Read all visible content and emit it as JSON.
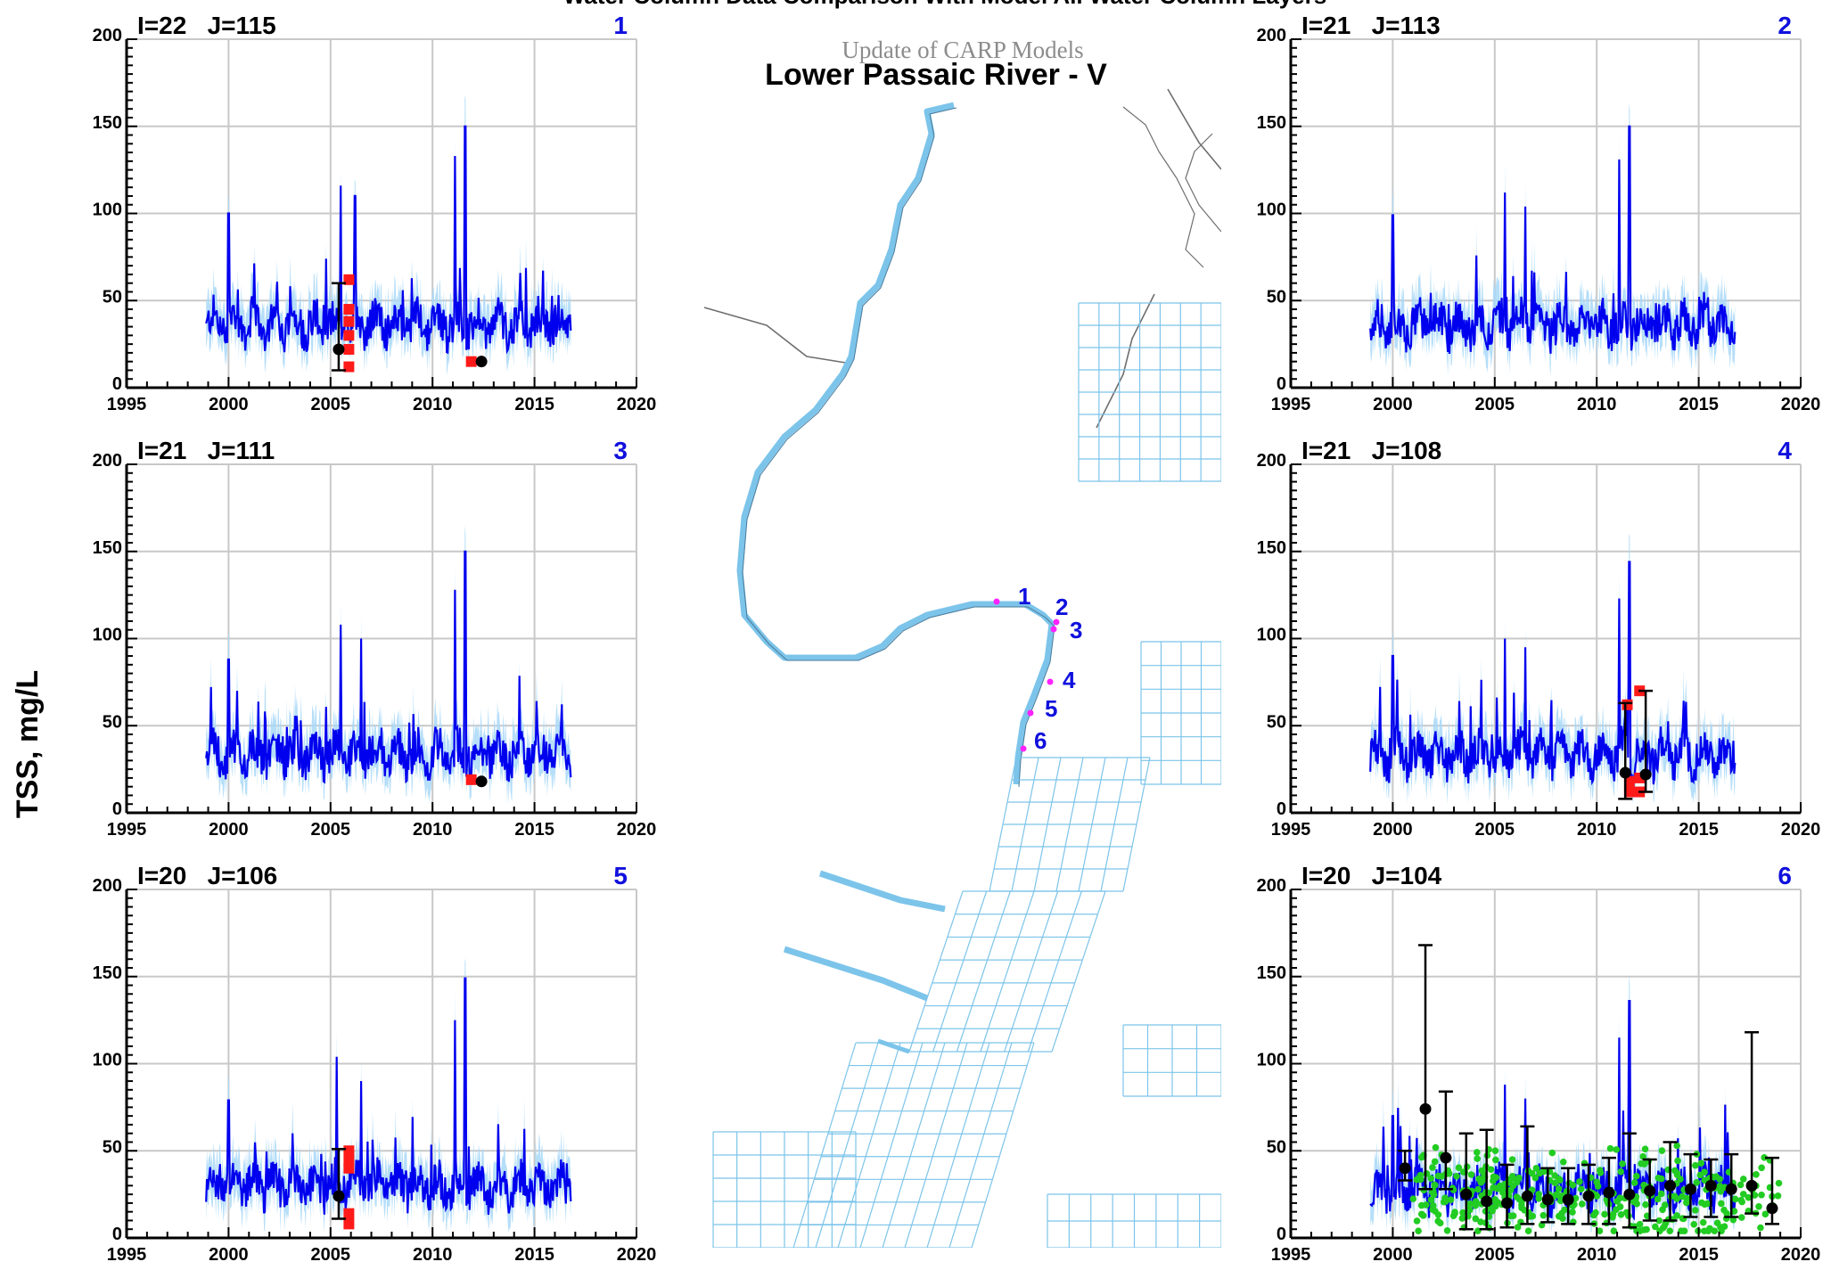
{
  "figure": {
    "suptitle": "Water Column Data Comparison With Model All Water Column Layers",
    "ylabel": "TSS, mg/L"
  },
  "map": {
    "subtitle": "Update of CARP Models",
    "title": "Lower Passaic River - V",
    "station_labels": [
      "1",
      "2",
      "3",
      "4",
      "5",
      "6"
    ]
  },
  "colors": {
    "model_line": "#0000ee",
    "model_band": "#a8d8f8",
    "data_red": "#ff1a1a",
    "data_black": "#000000",
    "data_green": "#22cc22",
    "grid": "#c8c8c8",
    "station_number": "#1010dd",
    "station_marker": "#ff22ff",
    "map_grid": "#7cc4ea"
  },
  "chart_data": [
    {
      "type": "line",
      "station": "1",
      "title_left": "I=22   J=115",
      "title_right": "1",
      "xlim": [
        1995,
        2020
      ],
      "ylim": [
        0,
        200
      ],
      "xticks": [
        "1995",
        "2000",
        "2005",
        "2010",
        "2015",
        "2020"
      ],
      "yticks": [
        "0",
        "50",
        "100",
        "150",
        "200"
      ],
      "model_range": [
        1998.9,
        2016.8
      ],
      "model_base": 37,
      "model_spikes": [
        [
          2000,
          100
        ],
        [
          2005.5,
          116
        ],
        [
          2011.1,
          133
        ],
        [
          2011.6,
          150
        ],
        [
          2006.2,
          110
        ]
      ],
      "red_points": [
        [
          2005.9,
          62
        ],
        [
          2005.9,
          45
        ],
        [
          2005.9,
          38
        ],
        [
          2005.9,
          30
        ],
        [
          2005.9,
          22
        ],
        [
          2005.9,
          12
        ],
        [
          2011.9,
          15
        ]
      ],
      "black_points": [
        [
          2005.4,
          22,
          10,
          60
        ],
        [
          2012.4,
          15,
          15,
          15
        ]
      ]
    },
    {
      "type": "line",
      "station": "2",
      "title_left": "I=21   J=113",
      "title_right": "2",
      "xlim": [
        1995,
        2020
      ],
      "ylim": [
        0,
        200
      ],
      "xticks": [
        "1995",
        "2000",
        "2005",
        "2010",
        "2015",
        "2020"
      ],
      "yticks": [
        "0",
        "50",
        "100",
        "150",
        "200"
      ],
      "model_range": [
        1998.9,
        2016.8
      ],
      "model_base": 36,
      "model_spikes": [
        [
          2000,
          99
        ],
        [
          2005.5,
          112
        ],
        [
          2011.1,
          131
        ],
        [
          2011.6,
          150
        ],
        [
          2006.5,
          104
        ]
      ],
      "red_points": [],
      "black_points": []
    },
    {
      "type": "line",
      "station": "3",
      "title_left": "I=21   J=111",
      "title_right": "3",
      "xlim": [
        1995,
        2020
      ],
      "ylim": [
        0,
        200
      ],
      "xticks": [
        "1995",
        "2000",
        "2005",
        "2010",
        "2015",
        "2020"
      ],
      "yticks": [
        "0",
        "50",
        "100",
        "150",
        "200"
      ],
      "model_range": [
        1998.9,
        2016.8
      ],
      "model_base": 34,
      "model_spikes": [
        [
          2000,
          88
        ],
        [
          2005.5,
          108
        ],
        [
          2011.1,
          128
        ],
        [
          2011.6,
          150
        ],
        [
          2006.5,
          100
        ]
      ],
      "red_points": [
        [
          2011.9,
          19
        ]
      ],
      "black_points": [
        [
          2012.4,
          18,
          18,
          18
        ]
      ]
    },
    {
      "type": "line",
      "station": "4",
      "title_left": "I=21   J=108",
      "title_right": "4",
      "xlim": [
        1995,
        2020
      ],
      "ylim": [
        0,
        200
      ],
      "xticks": [
        "1995",
        "2000",
        "2005",
        "2010",
        "2015",
        "2020"
      ],
      "yticks": [
        "0",
        "50",
        "100",
        "150",
        "200"
      ],
      "model_range": [
        1998.9,
        2016.8
      ],
      "model_base": 33,
      "model_spikes": [
        [
          2000,
          90
        ],
        [
          2005.5,
          100
        ],
        [
          2011.1,
          123
        ],
        [
          2011.6,
          144
        ],
        [
          2006.5,
          95
        ]
      ],
      "red_points": [
        [
          2011.5,
          62
        ],
        [
          2011.6,
          18
        ],
        [
          2011.6,
          12
        ],
        [
          2012.1,
          70
        ],
        [
          2012.1,
          20
        ],
        [
          2012.1,
          12
        ]
      ],
      "black_points": [
        [
          2011.4,
          23,
          8,
          63
        ],
        [
          2012.4,
          22,
          12,
          70
        ]
      ]
    },
    {
      "type": "line",
      "station": "5",
      "title_left": "I=20   J=106",
      "title_right": "5",
      "xlim": [
        1995,
        2020
      ],
      "ylim": [
        0,
        200
      ],
      "xticks": [
        "1995",
        "2000",
        "2005",
        "2010",
        "2015",
        "2020"
      ],
      "yticks": [
        "0",
        "50",
        "100",
        "150",
        "200"
      ],
      "model_range": [
        1998.9,
        2016.8
      ],
      "model_base": 30,
      "model_spikes": [
        [
          2000,
          79
        ],
        [
          2005.3,
          104
        ],
        [
          2011.1,
          125
        ],
        [
          2011.6,
          149
        ],
        [
          2006.5,
          90
        ]
      ],
      "red_points": [
        [
          2005.9,
          50
        ],
        [
          2005.9,
          44
        ],
        [
          2005.9,
          40
        ],
        [
          2005.9,
          14
        ],
        [
          2005.9,
          8
        ]
      ],
      "black_points": [
        [
          2005.4,
          24,
          11,
          51
        ]
      ]
    },
    {
      "type": "line",
      "station": "6",
      "title_left": "I=20   J=104",
      "title_right": "6",
      "xlim": [
        1995,
        2020
      ],
      "ylim": [
        0,
        200
      ],
      "xticks": [
        "1995",
        "2000",
        "2005",
        "2010",
        "2015",
        "2020"
      ],
      "yticks": [
        "0",
        "50",
        "100",
        "150",
        "200"
      ],
      "model_range": [
        1998.9,
        2016.8
      ],
      "model_base": 28,
      "model_spikes": [
        [
          2000,
          70
        ],
        [
          2005.5,
          88
        ],
        [
          2011.1,
          115
        ],
        [
          2011.6,
          136
        ],
        [
          2006.5,
          80
        ]
      ],
      "red_points": [],
      "black_points": [
        [
          2000.6,
          40,
          33,
          50
        ],
        [
          2001.6,
          74,
          28,
          168
        ],
        [
          2002.6,
          46,
          28,
          84
        ],
        [
          2003.6,
          25,
          5,
          60
        ],
        [
          2004.6,
          21,
          5,
          62
        ],
        [
          2005.6,
          20,
          6,
          42
        ],
        [
          2006.6,
          24,
          8,
          64
        ],
        [
          2007.6,
          22,
          9,
          40
        ],
        [
          2008.6,
          22,
          8,
          40
        ],
        [
          2009.6,
          24,
          8,
          42
        ],
        [
          2010.6,
          26,
          8,
          46
        ],
        [
          2011.6,
          25,
          6,
          60
        ],
        [
          2012.6,
          27,
          10,
          45
        ],
        [
          2013.6,
          30,
          10,
          55
        ],
        [
          2014.6,
          28,
          12,
          48
        ],
        [
          2015.6,
          30,
          12,
          45
        ],
        [
          2016.6,
          28,
          12,
          48
        ],
        [
          2017.6,
          30,
          14,
          118
        ],
        [
          2018.6,
          17,
          8,
          46
        ]
      ],
      "green_range": [
        2001.0,
        2019.0
      ],
      "green_center": 24,
      "green_spread": 22,
      "green_count": 360
    }
  ]
}
